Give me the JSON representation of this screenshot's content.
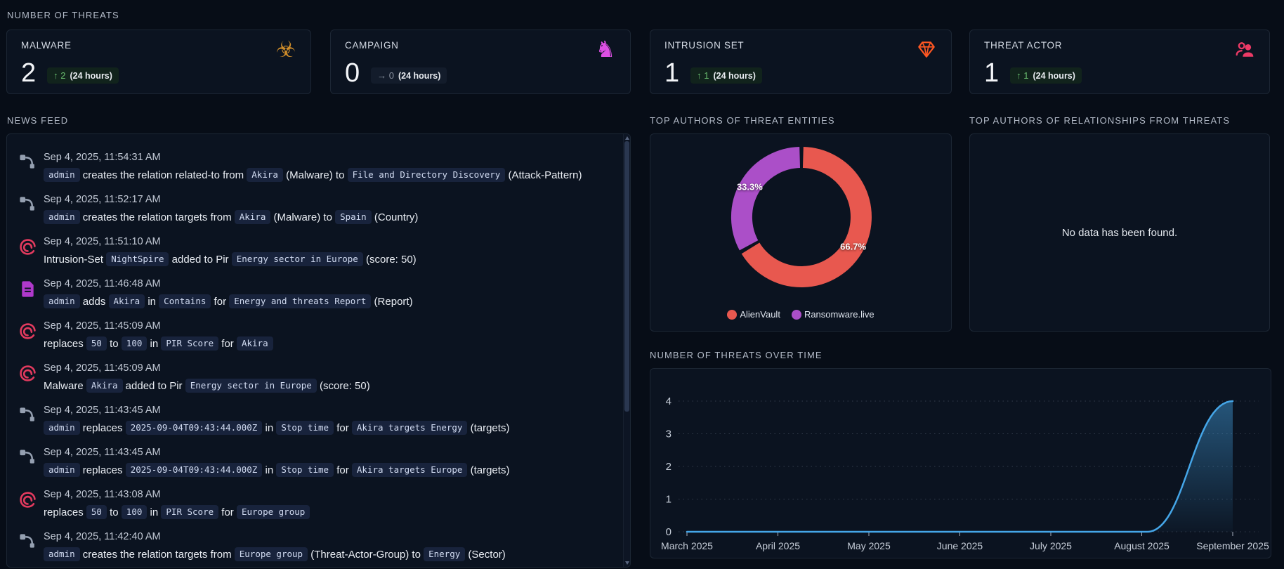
{
  "header": {
    "label": "NUMBER OF THREATS"
  },
  "cards": [
    {
      "title": "MALWARE",
      "value": "2",
      "icon": "biohazard-icon",
      "icon_color": "#cf8d2a",
      "delta_arrow": "↑",
      "delta": "2",
      "period": "(24 hours)",
      "trend": "up"
    },
    {
      "title": "CAMPAIGN",
      "value": "0",
      "icon": "chess-knight-icon",
      "icon_color": "#dd4fe3",
      "delta_arrow": "→",
      "delta": "0",
      "period": "(24 hours)",
      "trend": "flat"
    },
    {
      "title": "INTRUSION SET",
      "value": "1",
      "icon": "diamond-icon",
      "icon_color": "#ff5722",
      "delta_arrow": "↑",
      "delta": "1",
      "period": "(24 hours)",
      "trend": "up"
    },
    {
      "title": "THREAT ACTOR",
      "value": "1",
      "icon": "people-icon",
      "icon_color": "#ec3a66",
      "delta_arrow": "↑",
      "delta": "1",
      "period": "(24 hours)",
      "trend": "up"
    }
  ],
  "news_feed": {
    "label": "NEWS FEED",
    "items": [
      {
        "icon": "relationship-icon",
        "time": "Sep 4, 2025, 11:54:31 AM",
        "segments": [
          [
            "c",
            "admin"
          ],
          [
            "t",
            " creates the relation related-to from "
          ],
          [
            "c",
            "Akira"
          ],
          [
            "t",
            " (Malware) to "
          ],
          [
            "c",
            "File and Directory Discovery"
          ],
          [
            "t",
            " (Attack-Pattern)"
          ]
        ]
      },
      {
        "icon": "relationship-icon",
        "time": "Sep 4, 2025, 11:52:17 AM",
        "segments": [
          [
            "c",
            "admin"
          ],
          [
            "t",
            " creates the relation targets from "
          ],
          [
            "c",
            "Akira"
          ],
          [
            "t",
            " (Malware) to "
          ],
          [
            "c",
            "Spain"
          ],
          [
            "t",
            " (Country)"
          ]
        ]
      },
      {
        "icon": "flame-icon",
        "time": "Sep 4, 2025, 11:51:10 AM",
        "segments": [
          [
            "t",
            "Intrusion-Set "
          ],
          [
            "c",
            "NightSpire"
          ],
          [
            "t",
            " added to Pir "
          ],
          [
            "c",
            "Energy sector in Europe"
          ],
          [
            "t",
            " (score: 50)"
          ]
        ]
      },
      {
        "icon": "report-icon",
        "time": "Sep 4, 2025, 11:46:48 AM",
        "segments": [
          [
            "c",
            "admin"
          ],
          [
            "t",
            " adds "
          ],
          [
            "c",
            "Akira"
          ],
          [
            "t",
            " in "
          ],
          [
            "c",
            "Contains"
          ],
          [
            "t",
            " for "
          ],
          [
            "c",
            "Energy and threats Report"
          ],
          [
            "t",
            " (Report)"
          ]
        ]
      },
      {
        "icon": "flame-icon",
        "time": "Sep 4, 2025, 11:45:09 AM",
        "segments": [
          [
            "t",
            "replaces "
          ],
          [
            "c",
            "50"
          ],
          [
            "t",
            " to "
          ],
          [
            "c",
            "100"
          ],
          [
            "t",
            " in "
          ],
          [
            "c",
            "PIR Score"
          ],
          [
            "t",
            " for "
          ],
          [
            "c",
            "Akira"
          ]
        ]
      },
      {
        "icon": "flame-icon",
        "time": "Sep 4, 2025, 11:45:09 AM",
        "segments": [
          [
            "t",
            "Malware "
          ],
          [
            "c",
            "Akira"
          ],
          [
            "t",
            " added to Pir "
          ],
          [
            "c",
            "Energy sector in Europe"
          ],
          [
            "t",
            " (score: 50)"
          ]
        ]
      },
      {
        "icon": "relationship-icon",
        "time": "Sep 4, 2025, 11:43:45 AM",
        "segments": [
          [
            "c",
            "admin"
          ],
          [
            "t",
            " replaces "
          ],
          [
            "c",
            "2025-09-04T09:43:44.000Z"
          ],
          [
            "t",
            " in "
          ],
          [
            "c",
            "Stop time"
          ],
          [
            "t",
            " for "
          ],
          [
            "c",
            "Akira targets Energy"
          ],
          [
            "t",
            " (targets)"
          ]
        ]
      },
      {
        "icon": "relationship-icon",
        "time": "Sep 4, 2025, 11:43:45 AM",
        "segments": [
          [
            "c",
            "admin"
          ],
          [
            "t",
            " replaces "
          ],
          [
            "c",
            "2025-09-04T09:43:44.000Z"
          ],
          [
            "t",
            " in "
          ],
          [
            "c",
            "Stop time"
          ],
          [
            "t",
            " for "
          ],
          [
            "c",
            "Akira targets Europe"
          ],
          [
            "t",
            " (targets)"
          ]
        ]
      },
      {
        "icon": "flame-icon",
        "time": "Sep 4, 2025, 11:43:08 AM",
        "segments": [
          [
            "t",
            "replaces "
          ],
          [
            "c",
            "50"
          ],
          [
            "t",
            " to "
          ],
          [
            "c",
            "100"
          ],
          [
            "t",
            " in "
          ],
          [
            "c",
            "PIR Score"
          ],
          [
            "t",
            " for "
          ],
          [
            "c",
            "Europe group"
          ]
        ]
      },
      {
        "icon": "relationship-icon",
        "time": "Sep 4, 2025, 11:42:40 AM",
        "segments": [
          [
            "c",
            "admin"
          ],
          [
            "t",
            " creates the relation targets from "
          ],
          [
            "c",
            "Europe group"
          ],
          [
            "t",
            " (Threat-Actor-Group) to "
          ],
          [
            "c",
            "Energy"
          ],
          [
            "t",
            " (Sector)"
          ]
        ]
      }
    ]
  },
  "top_authors_entities": {
    "label": "TOP AUTHORS OF THREAT ENTITIES"
  },
  "top_authors_relationships": {
    "label": "TOP AUTHORS OF RELATIONSHIPS FROM THREATS",
    "empty_text": "No data has been found."
  },
  "threats_over_time": {
    "label": "NUMBER OF THREATS OVER TIME"
  },
  "chart_data": [
    {
      "type": "pie",
      "donut": true,
      "title": "TOP AUTHORS OF THREAT ENTITIES",
      "labels": [
        "AlienVault",
        "Ransomware.live"
      ],
      "values": [
        66.7,
        33.3
      ],
      "value_labels": [
        "66.7%",
        "33.3%"
      ],
      "colors": [
        "#e8584f",
        "#ab4fc8"
      ],
      "legend_position": "bottom",
      "start_angle_deg": -90
    },
    {
      "type": "area",
      "title": "NUMBER OF THREATS OVER TIME",
      "x": [
        "March 2025",
        "April 2025",
        "May 2025",
        "June 2025",
        "July 2025",
        "August 2025",
        "September 2025"
      ],
      "values": [
        0,
        0,
        0,
        0,
        0,
        0,
        4
      ],
      "xlabel": "",
      "ylabel": "",
      "ylim": [
        0,
        4
      ],
      "yticks": [
        0,
        1,
        2,
        3,
        4
      ],
      "line_color": "#45a6e8",
      "grid": "horizontal-dotted",
      "legend_position": "none"
    }
  ]
}
